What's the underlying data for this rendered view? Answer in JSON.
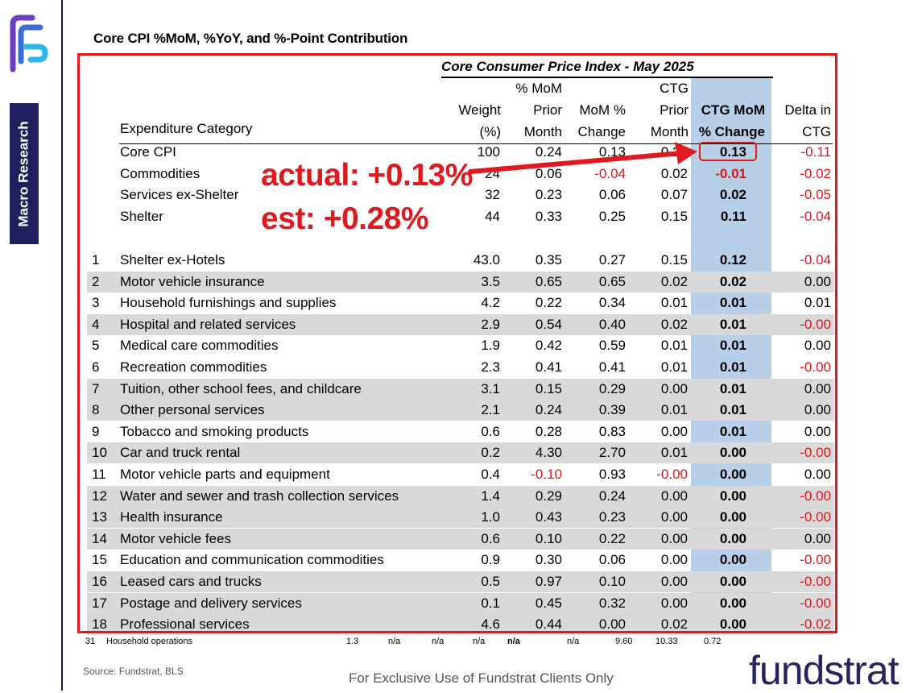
{
  "sidebar": {
    "tag": "Macro Research"
  },
  "page_title": "Core CPI %MoM, %YoY, and %-Point Contribution",
  "table": {
    "title": "Core Consumer Price Index - May 2025",
    "headers": {
      "weight": [
        "Weight",
        "(%)"
      ],
      "prior": [
        "% MoM",
        "Prior",
        "Month"
      ],
      "mom": [
        "MoM %",
        "Change"
      ],
      "ctg_prior": [
        "CTG",
        "Prior",
        "Month"
      ],
      "ctg_mom": [
        "CTG MoM",
        "% Change"
      ],
      "delta": [
        "Delta in",
        "CTG"
      ],
      "category": "Expenditure Category"
    },
    "summary_rows": [
      {
        "num": "",
        "category": "Core CPI",
        "weight": "100",
        "prior": "0.24",
        "mom": "0.13",
        "ctg_prior": "0.24",
        "ctg_mom": "0.13",
        "delta": "-0.11"
      },
      {
        "num": "",
        "category": "Commodities",
        "weight": "24",
        "prior": "0.06",
        "mom": "-0.04",
        "ctg_prior": "0.02",
        "ctg_mom": "-0.01",
        "delta": "-0.02"
      },
      {
        "num": "",
        "category": "Services ex-Shelter",
        "weight": "32",
        "prior": "0.23",
        "mom": "0.06",
        "ctg_prior": "0.07",
        "ctg_mom": "0.02",
        "delta": "-0.05"
      },
      {
        "num": "",
        "category": "Shelter",
        "weight": "44",
        "prior": "0.33",
        "mom": "0.25",
        "ctg_prior": "0.15",
        "ctg_mom": "0.11",
        "delta": "-0.04"
      }
    ],
    "rows": [
      {
        "num": "1",
        "category": "Shelter ex-Hotels",
        "weight": "43.0",
        "prior": "0.35",
        "mom": "0.27",
        "ctg_prior": "0.15",
        "ctg_mom": "0.12",
        "delta": "-0.04"
      },
      {
        "num": "2",
        "category": "Motor vehicle insurance",
        "weight": "3.5",
        "prior": "0.65",
        "mom": "0.65",
        "ctg_prior": "0.02",
        "ctg_mom": "0.02",
        "delta": "0.00"
      },
      {
        "num": "3",
        "category": "Household furnishings and supplies",
        "weight": "4.2",
        "prior": "0.22",
        "mom": "0.34",
        "ctg_prior": "0.01",
        "ctg_mom": "0.01",
        "delta": "0.01"
      },
      {
        "num": "4",
        "category": "Hospital and related services",
        "weight": "2.9",
        "prior": "0.54",
        "mom": "0.40",
        "ctg_prior": "0.02",
        "ctg_mom": "0.01",
        "delta": "-0.00"
      },
      {
        "num": "5",
        "category": "Medical care commodities",
        "weight": "1.9",
        "prior": "0.42",
        "mom": "0.59",
        "ctg_prior": "0.01",
        "ctg_mom": "0.01",
        "delta": "0.00"
      },
      {
        "num": "6",
        "category": "Recreation commodities",
        "weight": "2.3",
        "prior": "0.41",
        "mom": "0.41",
        "ctg_prior": "0.01",
        "ctg_mom": "0.01",
        "delta": "-0.00"
      },
      {
        "num": "7",
        "category": "Tuition, other school fees, and childcare",
        "weight": "3.1",
        "prior": "0.15",
        "mom": "0.29",
        "ctg_prior": "0.00",
        "ctg_mom": "0.01",
        "delta": "0.00"
      },
      {
        "num": "8",
        "category": "Other personal services",
        "weight": "2.1",
        "prior": "0.24",
        "mom": "0.39",
        "ctg_prior": "0.01",
        "ctg_mom": "0.01",
        "delta": "0.00"
      },
      {
        "num": "9",
        "category": "Tobacco and smoking products",
        "weight": "0.6",
        "prior": "0.28",
        "mom": "0.83",
        "ctg_prior": "0.00",
        "ctg_mom": "0.01",
        "delta": "0.00"
      },
      {
        "num": "10",
        "category": "Car and truck rental",
        "weight": "0.2",
        "prior": "4.30",
        "mom": "2.70",
        "ctg_prior": "0.01",
        "ctg_mom": "0.00",
        "delta": "-0.00"
      },
      {
        "num": "11",
        "category": "Motor vehicle parts and equipment",
        "weight": "0.4",
        "prior": "-0.10",
        "mom": "0.93",
        "ctg_prior": "-0.00",
        "ctg_mom": "0.00",
        "delta": "0.00"
      },
      {
        "num": "12",
        "category": "Water and sewer and trash collection services",
        "weight": "1.4",
        "prior": "0.29",
        "mom": "0.24",
        "ctg_prior": "0.00",
        "ctg_mom": "0.00",
        "delta": "-0.00"
      },
      {
        "num": "13",
        "category": "Health insurance",
        "weight": "1.0",
        "prior": "0.43",
        "mom": "0.23",
        "ctg_prior": "0.00",
        "ctg_mom": "0.00",
        "delta": "-0.00"
      },
      {
        "num": "14",
        "category": "Motor vehicle fees",
        "weight": "0.6",
        "prior": "0.10",
        "mom": "0.22",
        "ctg_prior": "0.00",
        "ctg_mom": "0.00",
        "delta": "0.00"
      },
      {
        "num": "15",
        "category": "Education and communication commodities",
        "weight": "0.9",
        "prior": "0.30",
        "mom": "0.06",
        "ctg_prior": "0.00",
        "ctg_mom": "0.00",
        "delta": "-0.00"
      },
      {
        "num": "16",
        "category": "Leased cars and trucks",
        "weight": "0.5",
        "prior": "0.97",
        "mom": "0.10",
        "ctg_prior": "0.00",
        "ctg_mom": "0.00",
        "delta": "-0.00"
      },
      {
        "num": "17",
        "category": "Postage and delivery services",
        "weight": "0.1",
        "prior": "0.45",
        "mom": "0.32",
        "ctg_prior": "0.00",
        "ctg_mom": "0.00",
        "delta": "-0.00"
      },
      {
        "num": "18",
        "category": "Professional services",
        "weight": "4.6",
        "prior": "0.44",
        "mom": "0.00",
        "ctg_prior": "0.02",
        "ctg_mom": "0.00",
        "delta": "-0.02"
      }
    ],
    "shaded_rows": [
      "2",
      "4",
      "7",
      "8",
      "10",
      "12",
      "13",
      "14",
      "16",
      "17",
      "18"
    ],
    "partial_row": [
      "31",
      "Household operations",
      "1.3",
      "n/a",
      "n/a",
      "n/a",
      "n/a",
      "n/a",
      "9.60",
      "10.33",
      "0.72"
    ]
  },
  "annotations": {
    "actual": "actual: +0.13%",
    "estimate": "est: +0.28%",
    "accent_color": "#e0191f"
  },
  "highlight_color": "#b8cfe8",
  "source": "Source: Fundstrat, BLS",
  "footer": "For Exclusive Use of Fundstrat Clients Only",
  "brand": "fundstrat"
}
